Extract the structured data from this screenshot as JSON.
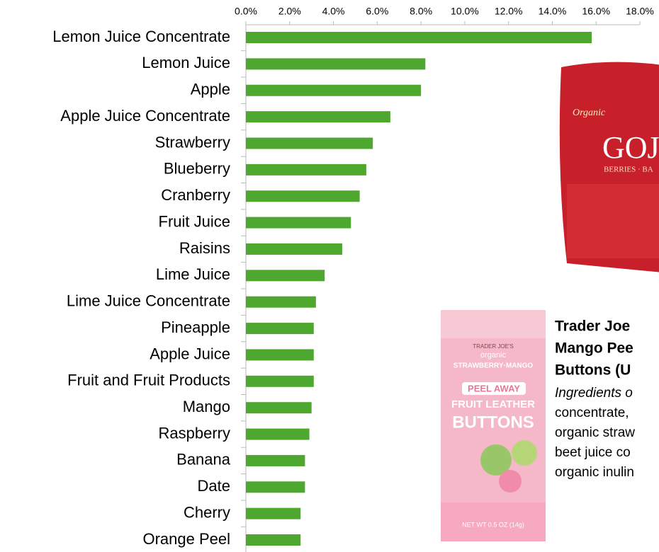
{
  "chart_data": {
    "type": "barh",
    "categories": [
      "Lemon Juice Concentrate",
      "Lemon Juice",
      "Apple",
      "Apple Juice Concentrate",
      "Strawberry",
      "Blueberry",
      "Cranberry",
      "Fruit Juice",
      "Raisins",
      "Lime Juice",
      "Lime Juice Concentrate",
      "Pineapple",
      "Apple Juice",
      "Fruit and Fruit Products",
      "Mango",
      "Raspberry",
      "Banana",
      "Date",
      "Cherry",
      "Orange Peel"
    ],
    "values": [
      15.8,
      8.2,
      8.0,
      6.6,
      5.8,
      5.5,
      5.2,
      4.8,
      4.4,
      3.6,
      3.2,
      3.1,
      3.1,
      3.1,
      3.0,
      2.9,
      2.7,
      2.7,
      2.5,
      2.5
    ],
    "color": "#4ea72e",
    "xlim": [
      0,
      18
    ],
    "xticks": [
      {
        "value": 0,
        "label": "0.0%"
      },
      {
        "value": 2,
        "label": "2.0%"
      },
      {
        "value": 4,
        "label": "4.0%"
      },
      {
        "value": 6,
        "label": "6.0%"
      },
      {
        "value": 8,
        "label": "8.0%"
      },
      {
        "value": 10,
        "label": "10.0%"
      },
      {
        "value": 12,
        "label": "12.0%"
      },
      {
        "value": 14,
        "label": "14.0%"
      },
      {
        "value": 16,
        "label": "16.0%"
      },
      {
        "value": 18,
        "label": "18.0%"
      }
    ],
    "grid": false
  },
  "goji_package": {
    "brand": "Organic",
    "name": "GOJ",
    "subname": "BERRIES · BA"
  },
  "tj_package": {
    "brand": "TRADER JOE'S",
    "organic": "organic",
    "flavor": "STRAWBERRY·MANGO",
    "peel": "PEEL AWAY",
    "leather": "FRUIT LEATHER",
    "buttons": "BUTTONS",
    "weight": "NET WT 0.5 OZ (14g)"
  },
  "annotation": {
    "title": [
      "Trader Joe",
      "Mango Pee",
      "Buttons (U"
    ],
    "lead": "Ingredients o",
    "lines": [
      "concentrate,",
      "organic straw",
      "beet juice co",
      "organic inulin"
    ]
  }
}
